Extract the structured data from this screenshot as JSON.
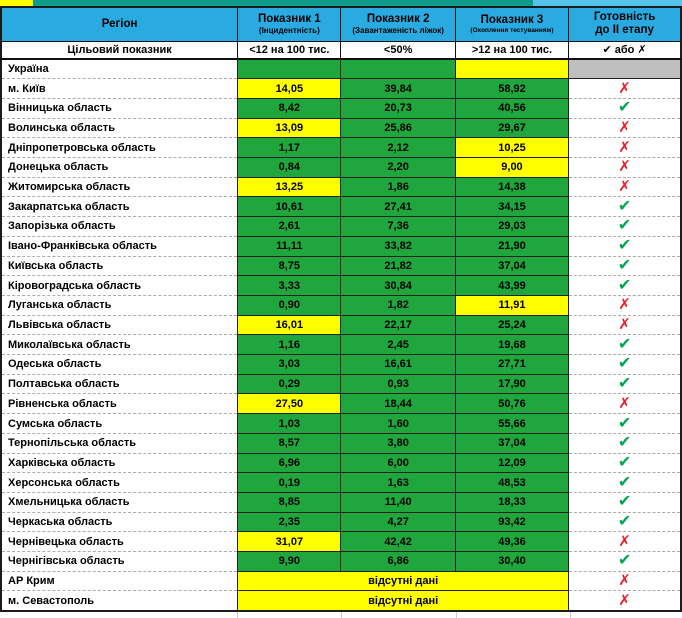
{
  "colors": {
    "header_blue": "#29ABE2",
    "strip_teal": "#0E9C8C",
    "strip_blue": "#55C3EE",
    "green": "#1FA63D",
    "yellow": "#FFFF00",
    "gray": "#BFBFBF",
    "check_green": "#00A651",
    "cross_red": "#EC1C24"
  },
  "icons": {
    "check": "✔",
    "cross": "✗"
  },
  "header": {
    "region_label": "Регіон",
    "target_row_label": "Цільовий показник",
    "indicators": [
      {
        "title": "Показник 1",
        "subtitle": "(Інцидентність)",
        "target": "<12 на 100 тис."
      },
      {
        "title": "Показник 2",
        "subtitle": "(Завантаженість ліжок)",
        "target": "<50%"
      },
      {
        "title": "Показник 3",
        "subtitle": "(Охоплення тестуванням)",
        "target": ">12 на 100 тис."
      }
    ],
    "readiness": {
      "title_line1": "Готовність",
      "title_line2": "до II етапу",
      "target": "✔ або ✗"
    }
  },
  "no_data_label": "відсутні дані",
  "rows": [
    {
      "region": "Україна",
      "values": [
        "",
        "",
        ""
      ],
      "value_colors": [
        "green",
        "green",
        "yellow"
      ],
      "readiness": "none"
    },
    {
      "region": "м. Київ",
      "values": [
        "14,05",
        "39,84",
        "58,92"
      ],
      "value_colors": [
        "yellow",
        "green",
        "green"
      ],
      "readiness": "cross"
    },
    {
      "region": "Вінницька область",
      "values": [
        "8,42",
        "20,73",
        "40,56"
      ],
      "value_colors": [
        "green",
        "green",
        "green"
      ],
      "readiness": "check"
    },
    {
      "region": "Волинська область",
      "values": [
        "13,09",
        "25,86",
        "29,67"
      ],
      "value_colors": [
        "yellow",
        "green",
        "green"
      ],
      "readiness": "cross"
    },
    {
      "region": "Дніпропетровська область",
      "values": [
        "1,17",
        "2,12",
        "10,25"
      ],
      "value_colors": [
        "green",
        "green",
        "yellow"
      ],
      "readiness": "cross"
    },
    {
      "region": "Донецька область",
      "values": [
        "0,84",
        "2,20",
        "9,00"
      ],
      "value_colors": [
        "green",
        "green",
        "yellow"
      ],
      "readiness": "cross"
    },
    {
      "region": "Житомирська область",
      "values": [
        "13,25",
        "1,86",
        "14,38"
      ],
      "value_colors": [
        "yellow",
        "green",
        "green"
      ],
      "readiness": "cross"
    },
    {
      "region": "Закарпатська область",
      "values": [
        "10,61",
        "27,41",
        "34,15"
      ],
      "value_colors": [
        "green",
        "green",
        "green"
      ],
      "readiness": "check"
    },
    {
      "region": "Запорізька область",
      "values": [
        "2,61",
        "7,36",
        "29,03"
      ],
      "value_colors": [
        "green",
        "green",
        "green"
      ],
      "readiness": "check"
    },
    {
      "region": "Івано-Франківська область",
      "values": [
        "11,11",
        "33,82",
        "21,90"
      ],
      "value_colors": [
        "green",
        "green",
        "green"
      ],
      "readiness": "check"
    },
    {
      "region": "Київська область",
      "values": [
        "8,75",
        "21,82",
        "37,04"
      ],
      "value_colors": [
        "green",
        "green",
        "green"
      ],
      "readiness": "check"
    },
    {
      "region": "Кіровоградська область",
      "values": [
        "3,33",
        "30,84",
        "43,99"
      ],
      "value_colors": [
        "green",
        "green",
        "green"
      ],
      "readiness": "check"
    },
    {
      "region": "Луганська область",
      "values": [
        "0,90",
        "1,82",
        "11,91"
      ],
      "value_colors": [
        "green",
        "green",
        "yellow"
      ],
      "readiness": "cross"
    },
    {
      "region": "Львівська область",
      "values": [
        "16,01",
        "22,17",
        "25,24"
      ],
      "value_colors": [
        "yellow",
        "green",
        "green"
      ],
      "readiness": "cross"
    },
    {
      "region": "Миколаївська область",
      "values": [
        "1,16",
        "2,45",
        "19,68"
      ],
      "value_colors": [
        "green",
        "green",
        "green"
      ],
      "readiness": "check"
    },
    {
      "region": "Одеська область",
      "values": [
        "3,03",
        "16,61",
        "27,71"
      ],
      "value_colors": [
        "green",
        "green",
        "green"
      ],
      "readiness": "check"
    },
    {
      "region": "Полтавська область",
      "values": [
        "0,29",
        "0,93",
        "17,90"
      ],
      "value_colors": [
        "green",
        "green",
        "green"
      ],
      "readiness": "check"
    },
    {
      "region": "Рівненська область",
      "values": [
        "27,50",
        "18,44",
        "50,76"
      ],
      "value_colors": [
        "yellow",
        "green",
        "green"
      ],
      "readiness": "cross"
    },
    {
      "region": "Сумська область",
      "values": [
        "1,03",
        "1,60",
        "55,66"
      ],
      "value_colors": [
        "green",
        "green",
        "green"
      ],
      "readiness": "check"
    },
    {
      "region": "Тернопільська область",
      "values": [
        "8,57",
        "3,80",
        "37,04"
      ],
      "value_colors": [
        "green",
        "green",
        "green"
      ],
      "readiness": "check"
    },
    {
      "region": "Харківська область",
      "values": [
        "6,96",
        "6,00",
        "12,09"
      ],
      "value_colors": [
        "green",
        "green",
        "green"
      ],
      "readiness": "check"
    },
    {
      "region": "Херсонська область",
      "values": [
        "0,19",
        "1,63",
        "48,53"
      ],
      "value_colors": [
        "green",
        "green",
        "green"
      ],
      "readiness": "check"
    },
    {
      "region": "Хмельницька область",
      "values": [
        "8,85",
        "11,40",
        "18,33"
      ],
      "value_colors": [
        "green",
        "green",
        "green"
      ],
      "readiness": "check"
    },
    {
      "region": "Черкаська область",
      "values": [
        "2,35",
        "4,27",
        "93,42"
      ],
      "value_colors": [
        "green",
        "green",
        "green"
      ],
      "readiness": "check"
    },
    {
      "region": "Чернівецька область",
      "values": [
        "31,07",
        "42,42",
        "49,36"
      ],
      "value_colors": [
        "yellow",
        "green",
        "green"
      ],
      "readiness": "cross"
    },
    {
      "region": "Чернігівська область",
      "values": [
        "9,90",
        "6,86",
        "30,40"
      ],
      "value_colors": [
        "green",
        "green",
        "green"
      ],
      "readiness": "check"
    },
    {
      "region": "АР Крим",
      "no_data": true,
      "readiness": "cross"
    },
    {
      "region": "м. Севастополь",
      "no_data": true,
      "readiness": "cross"
    }
  ]
}
